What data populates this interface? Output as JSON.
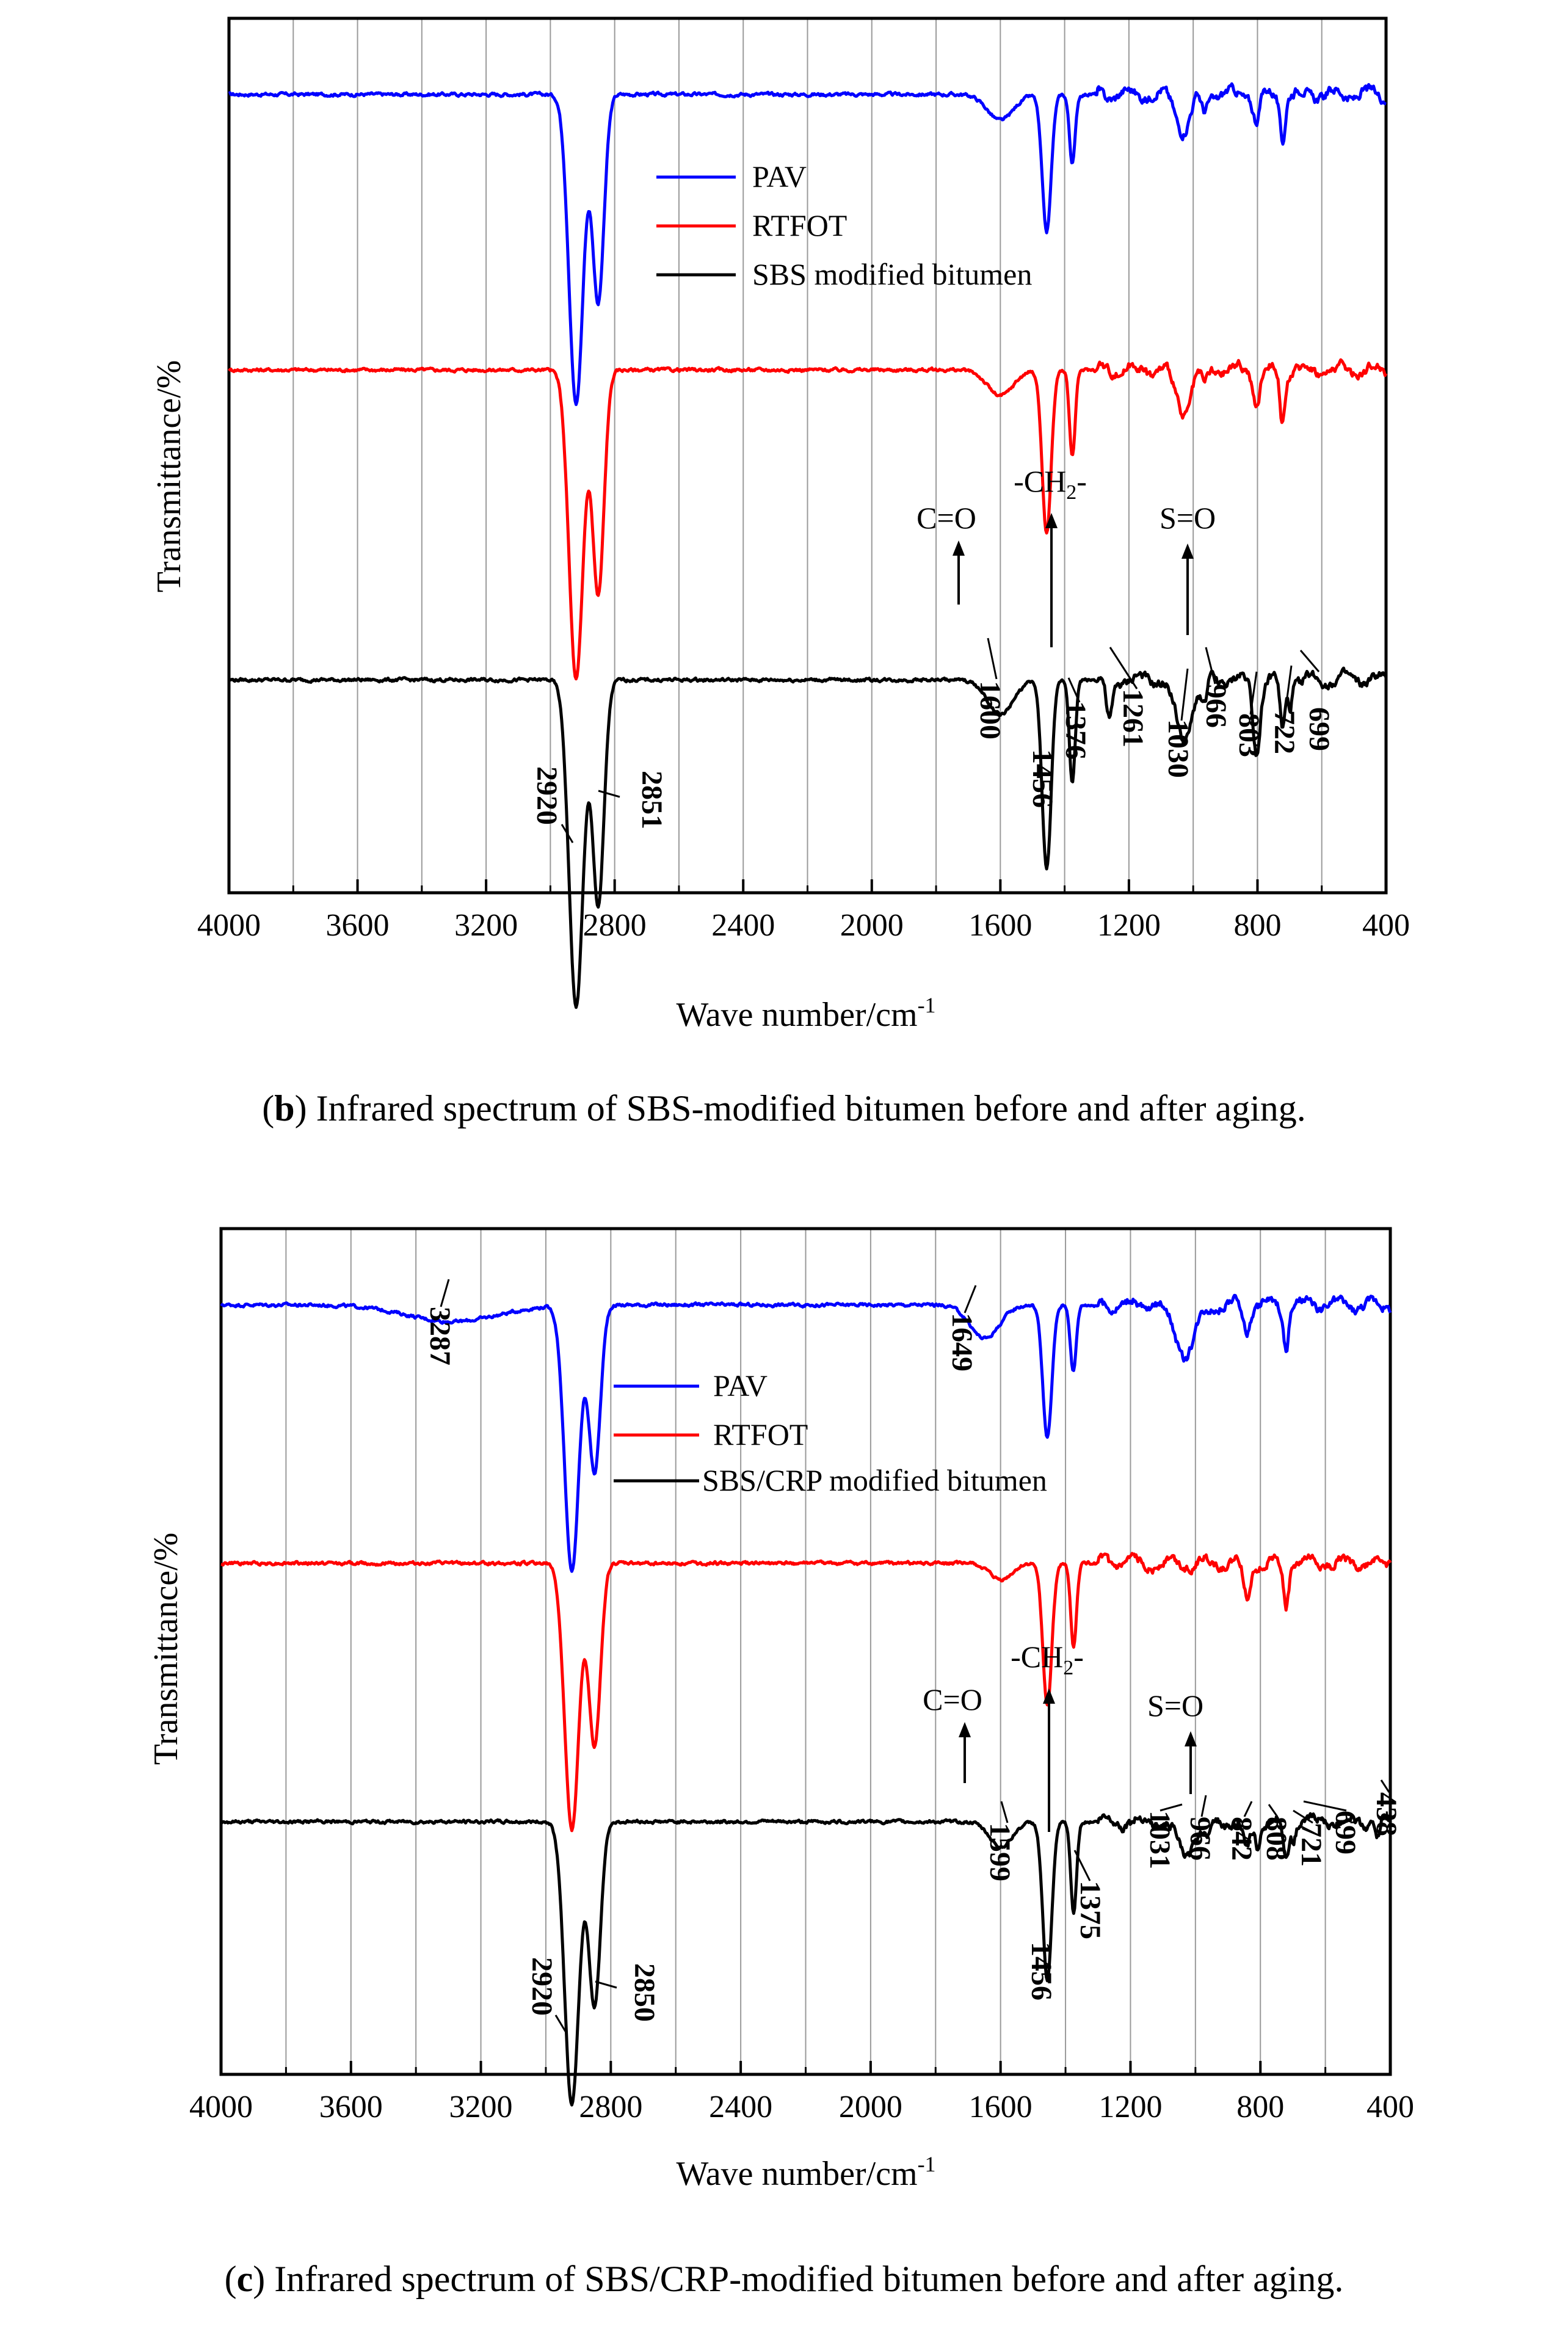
{
  "chart_data": [
    {
      "type": "line",
      "caption_letter": "b",
      "caption_text": "Infrared spectrum of SBS-modified bitumen before and after aging.",
      "xlabel": "Wave number/cm",
      "xlabel_sup": "-1",
      "ylabel": "Transmittance/%",
      "xlim": [
        4000,
        400
      ],
      "xticks": [
        4000,
        3600,
        3200,
        2800,
        2400,
        2000,
        1600,
        1200,
        800,
        400
      ],
      "grid": true,
      "legend": [
        {
          "name": "PAV",
          "color": "#0000ff"
        },
        {
          "name": "RTFOT",
          "color": "#ff0000"
        },
        {
          "name": "SBS modified bitumen",
          "color": "#000000"
        }
      ],
      "series": [
        {
          "name": "PAV",
          "color": "#0000ff",
          "baseline": 0.94,
          "peaks": [
            [
              2920,
              0.36,
              22
            ],
            [
              2851,
              0.24,
              18
            ],
            [
              1600,
              0.03,
              40
            ],
            [
              1456,
              0.16,
              14
            ],
            [
              1376,
              0.08,
              9
            ],
            [
              1030,
              0.04,
              22
            ],
            [
              966,
              0.02,
              9
            ],
            [
              803,
              0.03,
              10
            ],
            [
              722,
              0.05,
              8
            ]
          ]
        },
        {
          "name": "RTFOT",
          "color": "#ff0000",
          "baseline": 0.62,
          "peaks": [
            [
              2920,
              0.36,
              22
            ],
            [
              2851,
              0.26,
              18
            ],
            [
              1600,
              0.03,
              40
            ],
            [
              1456,
              0.19,
              14
            ],
            [
              1376,
              0.1,
              9
            ],
            [
              1030,
              0.05,
              22
            ],
            [
              966,
              0.02,
              9
            ],
            [
              803,
              0.04,
              10
            ],
            [
              722,
              0.06,
              8
            ]
          ]
        },
        {
          "name": "SBS modified bitumen",
          "color": "#000000",
          "baseline": 0.26,
          "peaks": [
            [
              2920,
              0.38,
              22
            ],
            [
              2851,
              0.26,
              18
            ],
            [
              1600,
              0.04,
              40
            ],
            [
              1456,
              0.22,
              14
            ],
            [
              1376,
              0.12,
              9
            ],
            [
              1261,
              0.05,
              10
            ],
            [
              1030,
              0.07,
              25
            ],
            [
              966,
              0.03,
              9
            ],
            [
              803,
              0.08,
              11
            ],
            [
              722,
              0.06,
              8
            ],
            [
              699,
              0.03,
              6
            ]
          ]
        }
      ],
      "peak_labels": [
        "2920",
        "2851",
        "1600",
        "1456",
        "1376",
        "1261",
        "1030",
        "966",
        "803",
        "722",
        "699"
      ],
      "group_labels": [
        {
          "text": "C=O",
          "x": 1730
        },
        {
          "text": "-CH",
          "sub": "2",
          "after": "-",
          "x": 1430
        },
        {
          "text": "S=O",
          "x": 1010
        }
      ]
    },
    {
      "type": "line",
      "caption_letter": "c",
      "caption_text": "Infrared spectrum of SBS/CRP-modified bitumen before and after aging.",
      "xlabel": "Wave number/cm",
      "xlabel_sup": "-1",
      "ylabel": "Transmittance/%",
      "xlim": [
        4000,
        400
      ],
      "xticks": [
        4000,
        3600,
        3200,
        2800,
        2400,
        2000,
        1600,
        1200,
        800,
        400
      ],
      "grid": true,
      "legend": [
        {
          "name": "PAV",
          "color": "#0000ff"
        },
        {
          "name": "RTFOT",
          "color": "#ff0000"
        },
        {
          "name": "SBS/CRP modified bitumen",
          "color": "#000000"
        }
      ],
      "series": [
        {
          "name": "PAV",
          "color": "#0000ff",
          "baseline": 0.94,
          "peaks": [
            [
              3287,
              0.02,
              140
            ],
            [
              2920,
              0.32,
              22
            ],
            [
              2850,
              0.2,
              18
            ],
            [
              1649,
              0.04,
              45
            ],
            [
              1456,
              0.16,
              14
            ],
            [
              1376,
              0.08,
              9
            ],
            [
              1031,
              0.06,
              30
            ],
            [
              842,
              0.03,
              10
            ],
            [
              721,
              0.05,
              8
            ]
          ]
        },
        {
          "name": "RTFOT",
          "color": "#ff0000",
          "baseline": 0.63,
          "peaks": [
            [
              2920,
              0.32,
              22
            ],
            [
              2850,
              0.22,
              18
            ],
            [
              1599,
              0.02,
              35
            ],
            [
              1456,
              0.17,
              14
            ],
            [
              1375,
              0.1,
              9
            ],
            [
              842,
              0.04,
              10
            ],
            [
              721,
              0.05,
              8
            ]
          ]
        },
        {
          "name": "SBS/CRP modified bitumen",
          "color": "#000000",
          "baseline": 0.32,
          "peaks": [
            [
              2920,
              0.34,
              22
            ],
            [
              2850,
              0.22,
              18
            ],
            [
              1599,
              0.03,
              35
            ],
            [
              1456,
              0.19,
              14
            ],
            [
              1375,
              0.11,
              9
            ],
            [
              1031,
              0.04,
              25
            ],
            [
              966,
              0.02,
              9
            ],
            [
              842,
              0.04,
              10
            ],
            [
              808,
              0.03,
              8
            ],
            [
              721,
              0.05,
              8
            ],
            [
              699,
              0.02,
              6
            ],
            [
              438,
              0.02,
              6
            ]
          ]
        }
      ],
      "peak_labels": [
        "3287",
        "1649",
        "2920",
        "2850",
        "1599",
        "1456",
        "1375",
        "1031",
        "966",
        "842",
        "808",
        "721",
        "699",
        "438"
      ],
      "group_labels": [
        {
          "text": "C=O",
          "x": 1730
        },
        {
          "text": "-CH",
          "sub": "2",
          "after": "-",
          "x": 1430
        },
        {
          "text": "S=O",
          "x": 1010
        }
      ]
    }
  ]
}
